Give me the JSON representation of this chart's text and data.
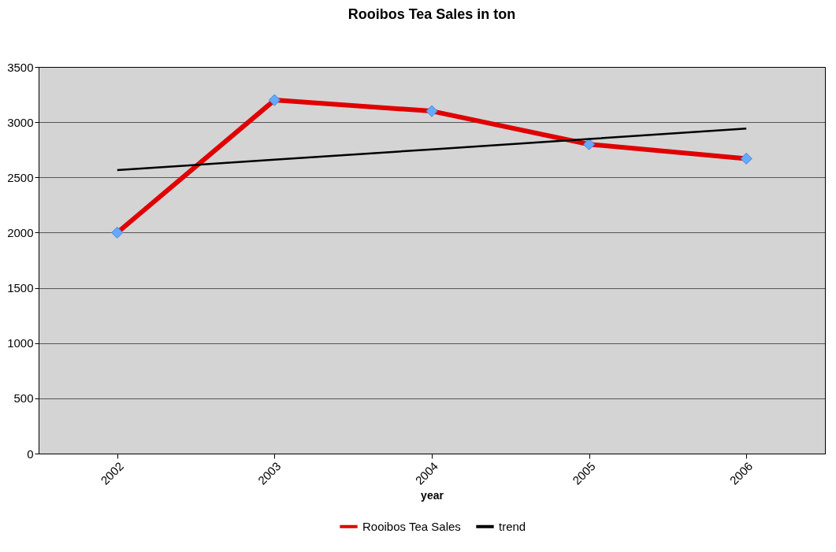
{
  "chart_data": {
    "type": "line",
    "title": "Rooibos Tea Sales in ton",
    "xlabel": "year",
    "categories": [
      "2002",
      "2003",
      "2004",
      "2005",
      "2006"
    ],
    "series": [
      {
        "name": "Rooibos Tea Sales",
        "color": "#e00000",
        "marker": "diamond",
        "values": [
          2000,
          3200,
          3100,
          2800,
          2670
        ]
      },
      {
        "name": "trend",
        "color": "#000000",
        "marker": "none",
        "values": [
          2566,
          2660,
          2754,
          2848,
          2942
        ]
      }
    ],
    "ylim": [
      0,
      3500
    ],
    "yticks": [
      0,
      500,
      1000,
      1500,
      2000,
      2500,
      3000,
      3500
    ],
    "grid": "y",
    "legend": "bottom"
  }
}
